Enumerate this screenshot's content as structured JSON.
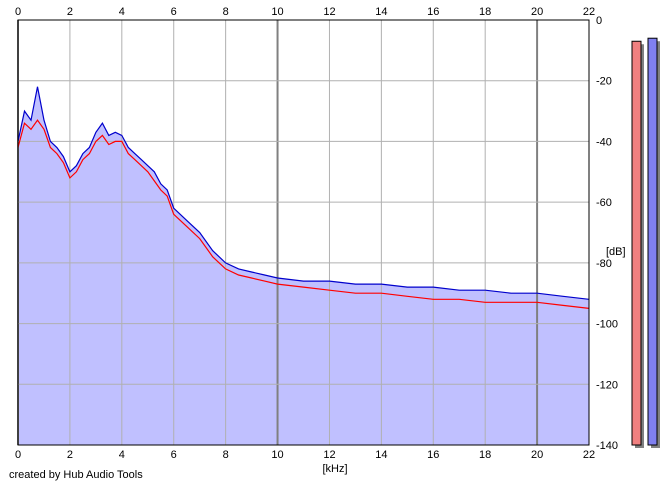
{
  "footer": {
    "credit": "created by Hub Audio Tools"
  },
  "colors": {
    "background": "#ffffff",
    "fill": "#c0c0ff",
    "grid": "#b0b0b0",
    "grid_major": "#808080",
    "left_channel": "#ff0000",
    "right_channel": "#0000cc",
    "left_meter": "#f08080",
    "right_meter": "#8080f0"
  },
  "chart_data": {
    "type": "line",
    "title": "",
    "xlabel": "[kHz]",
    "ylabel": "[dB]",
    "xlim": [
      0,
      22
    ],
    "ylim": [
      -140,
      0
    ],
    "x_ticks": [
      "0",
      "2",
      "4",
      "6",
      "8",
      "10",
      "12",
      "14",
      "16",
      "18",
      "20",
      "22"
    ],
    "y_ticks": [
      "0",
      "-20",
      "-40",
      "-60",
      "-80",
      "-100",
      "-120",
      "-140"
    ],
    "grid": true,
    "fill_below": true,
    "legend": "none",
    "x": [
      0,
      0.25,
      0.5,
      0.75,
      1,
      1.25,
      1.5,
      1.75,
      2,
      2.25,
      2.5,
      2.75,
      3,
      3.25,
      3.5,
      3.75,
      4,
      4.25,
      4.5,
      4.75,
      5,
      5.25,
      5.5,
      5.75,
      6,
      6.5,
      7,
      7.5,
      8,
      8.5,
      9,
      9.5,
      10,
      11,
      12,
      13,
      14,
      15,
      16,
      17,
      18,
      19,
      20,
      21,
      22
    ],
    "series": [
      {
        "values": [
          -42,
          -34,
          -36,
          -33,
          -36,
          -42,
          -44,
          -47,
          -52,
          -50,
          -46,
          -44,
          -40,
          -38,
          -41,
          -40,
          -40,
          -44,
          -46,
          -48,
          -50,
          -53,
          -56,
          -58,
          -64,
          -68,
          -72,
          -78,
          -82,
          -84,
          -85,
          -86,
          -87,
          -88,
          -89,
          -90,
          -90,
          -91,
          -92,
          -92,
          -93,
          -93,
          -93,
          -94,
          -95
        ]
      },
      {
        "values": [
          -40,
          -30,
          -33,
          -22,
          -33,
          -40,
          -42,
          -45,
          -50,
          -48,
          -44,
          -42,
          -37,
          -34,
          -38,
          -37,
          -38,
          -42,
          -44,
          -46,
          -48,
          -50,
          -54,
          -56,
          -62,
          -66,
          -70,
          -76,
          -80,
          -82,
          -83,
          -84,
          -85,
          -86,
          -86,
          -87,
          -87,
          -88,
          -88,
          -89,
          -89,
          -90,
          -90,
          -91,
          -92
        ]
      }
    ],
    "meters": {
      "left": -7,
      "right": -6
    }
  }
}
